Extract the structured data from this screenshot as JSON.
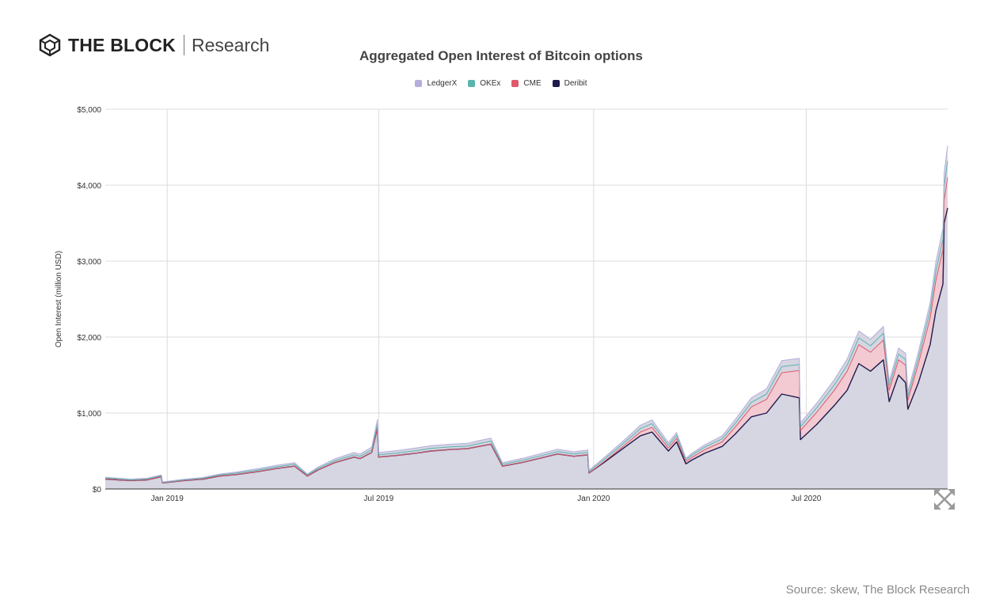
{
  "brand": {
    "name": "THE BLOCK",
    "sub": "Research"
  },
  "source": "Source: skew, The Block Research",
  "chart_data": {
    "type": "area",
    "stacked": true,
    "title": "Aggregated Open Interest of Bitcoin options",
    "ylabel": "Open Interest (million USD)",
    "xlabel": "",
    "ylim": [
      0,
      5000
    ],
    "xlim": [
      "2018-11-09",
      "2020-10-30"
    ],
    "grid": true,
    "legend_position": "top-center",
    "yticks": [
      0,
      1000,
      2000,
      3000,
      4000,
      5000
    ],
    "ytick_labels": [
      "$0",
      "$1,000",
      "$2,000",
      "$3,000",
      "$4,000",
      "$5,000"
    ],
    "xticks": [
      "2019-01-01",
      "2019-07-01",
      "2020-01-01",
      "2020-07-01"
    ],
    "xtick_labels": [
      "Jan 2019",
      "Jul 2019",
      "Jan 2020",
      "Jul 2020"
    ],
    "x": [
      "2018-11-09",
      "2018-11-20",
      "2018-12-01",
      "2018-12-15",
      "2018-12-27",
      "2018-12-28",
      "2019-01-15",
      "2019-02-01",
      "2019-02-15",
      "2019-03-01",
      "2019-03-20",
      "2019-04-05",
      "2019-04-20",
      "2019-05-01",
      "2019-05-10",
      "2019-05-25",
      "2019-06-10",
      "2019-06-15",
      "2019-06-25",
      "2019-06-30",
      "2019-07-01",
      "2019-07-15",
      "2019-08-01",
      "2019-08-15",
      "2019-09-01",
      "2019-09-15",
      "2019-09-25",
      "2019-10-05",
      "2019-10-15",
      "2019-11-01",
      "2019-11-15",
      "2019-12-01",
      "2019-12-15",
      "2019-12-27",
      "2019-12-28",
      "2020-01-10",
      "2020-01-25",
      "2020-02-10",
      "2020-02-20",
      "2020-03-05",
      "2020-03-12",
      "2020-03-20",
      "2020-03-25",
      "2020-04-05",
      "2020-04-20",
      "2020-05-01",
      "2020-05-15",
      "2020-05-28",
      "2020-06-10",
      "2020-06-25",
      "2020-06-26",
      "2020-07-10",
      "2020-07-25",
      "2020-08-05",
      "2020-08-15",
      "2020-08-25",
      "2020-09-05",
      "2020-09-10",
      "2020-09-18",
      "2020-09-24",
      "2020-09-26",
      "2020-10-05",
      "2020-10-15",
      "2020-10-20",
      "2020-10-26",
      "2020-10-27",
      "2020-10-30"
    ],
    "series": [
      {
        "name": "Deribit",
        "color": "#1f1b4d",
        "values": [
          130,
          120,
          110,
          120,
          160,
          80,
          110,
          130,
          170,
          190,
          230,
          270,
          300,
          170,
          250,
          350,
          420,
          400,
          480,
          800,
          420,
          440,
          470,
          500,
          520,
          530,
          560,
          590,
          300,
          350,
          400,
          460,
          430,
          450,
          210,
          350,
          520,
          700,
          750,
          500,
          620,
          330,
          380,
          470,
          560,
          720,
          950,
          1000,
          1250,
          1200,
          650,
          850,
          1100,
          1300,
          1650,
          1550,
          1700,
          1150,
          1500,
          1400,
          1050,
          1400,
          1900,
          2350,
          2700,
          3500,
          3700
        ]
      },
      {
        "name": "CME",
        "color": "#dd5a6a",
        "values": [
          0,
          0,
          0,
          0,
          0,
          0,
          0,
          0,
          0,
          0,
          0,
          0,
          0,
          0,
          0,
          0,
          0,
          0,
          0,
          0,
          0,
          0,
          0,
          0,
          0,
          0,
          0,
          0,
          0,
          0,
          0,
          0,
          0,
          0,
          0,
          10,
          25,
          50,
          60,
          40,
          45,
          30,
          35,
          45,
          60,
          90,
          130,
          180,
          280,
          360,
          120,
          160,
          200,
          250,
          250,
          250,
          260,
          150,
          200,
          230,
          120,
          250,
          350,
          400,
          450,
          300,
          400
        ]
      },
      {
        "name": "OKEx",
        "color": "#5ab5ae",
        "values": [
          15,
          12,
          10,
          12,
          15,
          8,
          10,
          12,
          15,
          18,
          20,
          22,
          25,
          15,
          20,
          25,
          30,
          30,
          35,
          55,
          30,
          30,
          32,
          35,
          35,
          36,
          38,
          40,
          25,
          28,
          30,
          32,
          30,
          32,
          20,
          30,
          35,
          45,
          50,
          35,
          40,
          25,
          30,
          35,
          40,
          50,
          60,
          70,
          80,
          80,
          50,
          60,
          70,
          80,
          90,
          85,
          90,
          60,
          75,
          75,
          55,
          75,
          100,
          120,
          140,
          180,
          220
        ]
      },
      {
        "name": "LedgerX",
        "color": "#b3aedd",
        "values": [
          10,
          10,
          10,
          10,
          10,
          5,
          8,
          10,
          12,
          15,
          18,
          20,
          22,
          12,
          18,
          25,
          30,
          30,
          35,
          60,
          30,
          32,
          35,
          35,
          35,
          35,
          38,
          40,
          22,
          25,
          28,
          32,
          30,
          32,
          15,
          25,
          35,
          45,
          50,
          35,
          40,
          20,
          25,
          30,
          40,
          50,
          60,
          70,
          80,
          80,
          50,
          60,
          70,
          80,
          90,
          85,
          90,
          60,
          80,
          80,
          60,
          80,
          100,
          120,
          140,
          180,
          200
        ]
      }
    ]
  }
}
